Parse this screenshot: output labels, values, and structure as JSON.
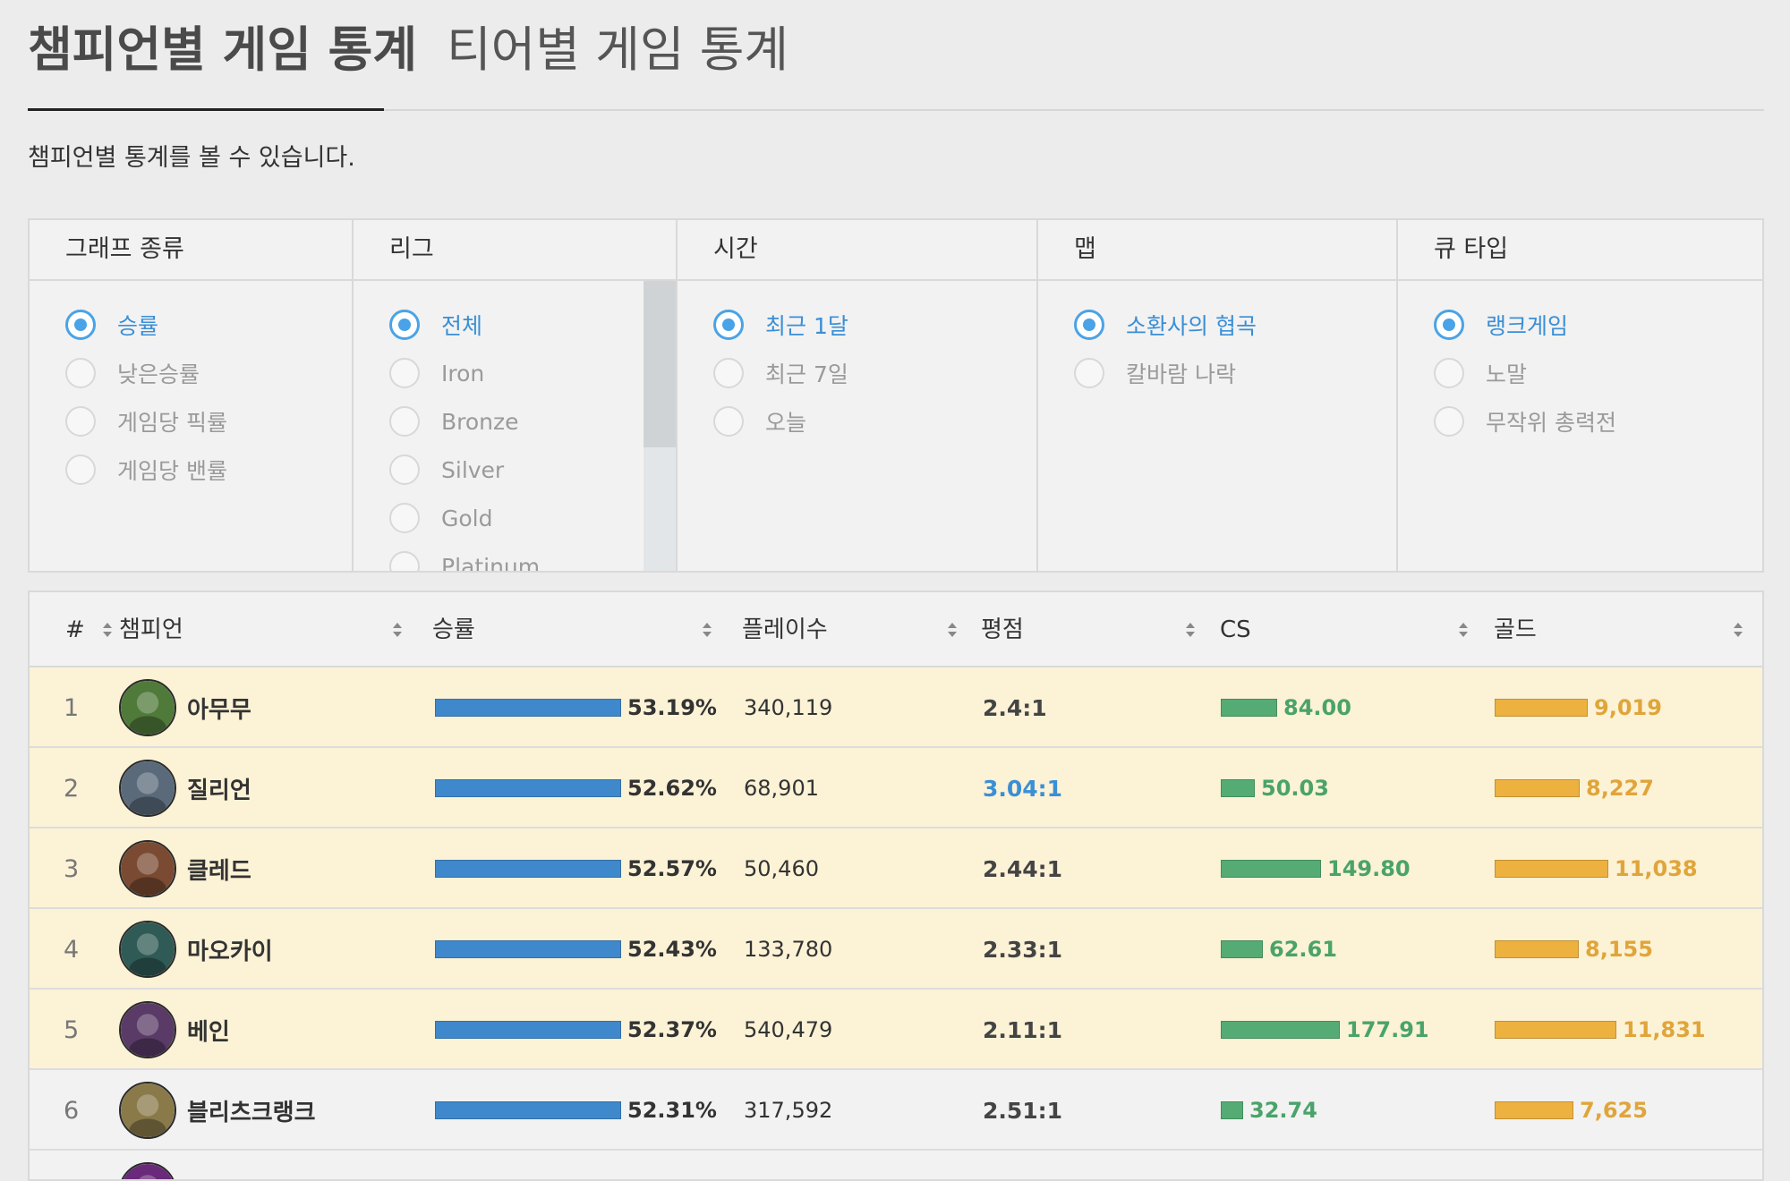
{
  "tabs": {
    "active": "챔피언별 게임 통계",
    "inactive": "티어별 게임 통계"
  },
  "description": "챔피언별 통계를 볼 수 있습니다.",
  "filters": [
    {
      "header": "그래프 종류",
      "options": [
        "승률",
        "낮은승률",
        "게임당 픽률",
        "게임당 밴률"
      ],
      "selected": 0
    },
    {
      "header": "리그",
      "options": [
        "전체",
        "Iron",
        "Bronze",
        "Silver",
        "Gold",
        "Platinum"
      ],
      "selected": 0
    },
    {
      "header": "시간",
      "options": [
        "최근 1달",
        "최근 7일",
        "오늘"
      ],
      "selected": 0
    },
    {
      "header": "맵",
      "options": [
        "소환사의 협곡",
        "칼바람 나락"
      ],
      "selected": 0
    },
    {
      "header": "큐 타입",
      "options": [
        "랭크게임",
        "노말",
        "무작위 총력전"
      ],
      "selected": 0
    }
  ],
  "table": {
    "headers": {
      "rank": "#",
      "champion": "챔피언",
      "winrate": "승률",
      "plays": "플레이수",
      "kda": "평점",
      "cs": "CS",
      "gold": "골드"
    },
    "rows": [
      {
        "rank": "1",
        "name": "아무무",
        "winrate": "53.19%",
        "plays": "340,119",
        "kda": "2.4:1",
        "kda_highlight": false,
        "cs": "84.00",
        "cs_value": 84.0,
        "gold": "9,019",
        "gold_value": 9019,
        "highlight": true,
        "avatar_color": "#4f7a3a"
      },
      {
        "rank": "2",
        "name": "질리언",
        "winrate": "52.62%",
        "plays": "68,901",
        "kda": "3.04:1",
        "kda_highlight": true,
        "cs": "50.03",
        "cs_value": 50.03,
        "gold": "8,227",
        "gold_value": 8227,
        "highlight": true,
        "avatar_color": "#5a6a7a"
      },
      {
        "rank": "3",
        "name": "클레드",
        "winrate": "52.57%",
        "plays": "50,460",
        "kda": "2.44:1",
        "kda_highlight": false,
        "cs": "149.80",
        "cs_value": 149.8,
        "gold": "11,038",
        "gold_value": 11038,
        "highlight": true,
        "avatar_color": "#7a4a32"
      },
      {
        "rank": "4",
        "name": "마오카이",
        "winrate": "52.43%",
        "plays": "133,780",
        "kda": "2.33:1",
        "kda_highlight": false,
        "cs": "62.61",
        "cs_value": 62.61,
        "gold": "8,155",
        "gold_value": 8155,
        "highlight": true,
        "avatar_color": "#2f5a55"
      },
      {
        "rank": "5",
        "name": "베인",
        "winrate": "52.37%",
        "plays": "540,479",
        "kda": "2.11:1",
        "kda_highlight": false,
        "cs": "177.91",
        "cs_value": 177.91,
        "gold": "11,831",
        "gold_value": 11831,
        "highlight": true,
        "avatar_color": "#5a3a66"
      },
      {
        "rank": "6",
        "name": "블리츠크랭크",
        "winrate": "52.31%",
        "plays": "317,592",
        "kda": "2.51:1",
        "kda_highlight": false,
        "cs": "32.74",
        "cs_value": 32.74,
        "gold": "7,625",
        "gold_value": 7625,
        "highlight": false,
        "avatar_color": "#8a7a4a"
      },
      {
        "rank": "",
        "name": "",
        "winrate": "",
        "plays": "",
        "kda": "",
        "kda_highlight": false,
        "cs": "",
        "cs_value": 0,
        "gold": "",
        "gold_value": 0,
        "highlight": false,
        "avatar_color": "#6a2a7a"
      }
    ]
  },
  "colors": {
    "accent": "#4aa3e6",
    "win_bar": "#3f88cc",
    "cs_bar": "#55ab74",
    "gold_bar": "#edb140",
    "row_highlight": "#fcf2d6"
  }
}
